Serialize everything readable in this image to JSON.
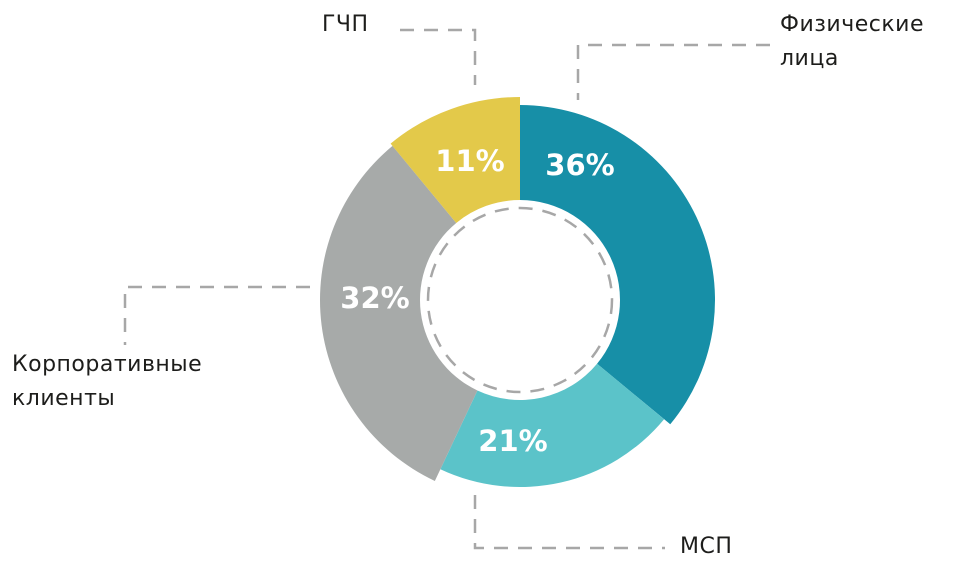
{
  "chart_data": {
    "type": "donut",
    "categories": [
      "Физические лица",
      "МСП",
      "Корпоративные клиенты",
      "ГЧП"
    ],
    "values": [
      36,
      21,
      32,
      11
    ],
    "value_labels": [
      "36%",
      "21%",
      "32%",
      "11%"
    ],
    "colors": [
      "#178fa7",
      "#5bc3c9",
      "#a7aaa9",
      "#e3c94a"
    ]
  }
}
